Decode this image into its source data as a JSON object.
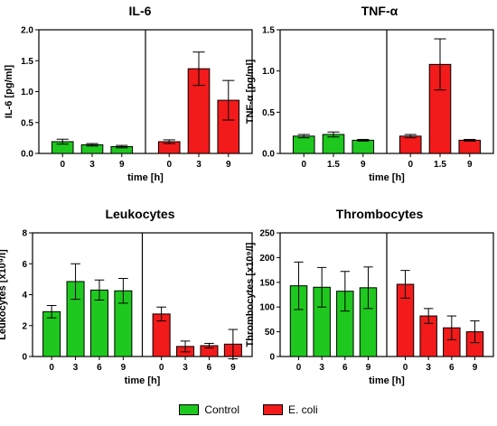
{
  "legend": [
    {
      "label": "Control",
      "color": "#1ec81e"
    },
    {
      "label": "E. coli",
      "color": "#f21a1a"
    }
  ],
  "chart_data": [
    {
      "type": "bar",
      "title": "IL-6",
      "xlabel": "time [h]",
      "ylabel": "IL-6 [pg/ml]",
      "ylim": [
        0,
        2.0
      ],
      "yticks": [
        "0.0",
        "0.5",
        "1.0",
        "1.5",
        "2.0"
      ],
      "series": [
        {
          "name": "Control",
          "categories": [
            "0",
            "3",
            "9"
          ],
          "values": [
            0.19,
            0.14,
            0.11
          ],
          "errors": [
            0.04,
            0.02,
            0.02
          ]
        },
        {
          "name": "E. coli",
          "categories": [
            "0",
            "3",
            "9"
          ],
          "values": [
            0.19,
            1.37,
            0.86
          ],
          "errors": [
            0.03,
            0.27,
            0.32
          ]
        }
      ]
    },
    {
      "type": "bar",
      "title": "TNF-α",
      "xlabel": "time [h]",
      "ylabel": "TNF-α [pg/ml]",
      "ylim": [
        0,
        1.5
      ],
      "yticks": [
        "0.0",
        "0.5",
        "1.0",
        "1.5"
      ],
      "series": [
        {
          "name": "Control",
          "categories": [
            "0",
            "1.5",
            "9"
          ],
          "values": [
            0.21,
            0.23,
            0.16
          ],
          "errors": [
            0.02,
            0.03,
            0.01
          ]
        },
        {
          "name": "E. coli",
          "categories": [
            "0",
            "1.5",
            "9"
          ],
          "values": [
            0.21,
            1.08,
            0.16
          ],
          "errors": [
            0.02,
            0.31,
            0.01
          ]
        }
      ]
    },
    {
      "type": "bar",
      "title": "Leukocytes",
      "xlabel": "time [h]",
      "ylabel": "Leukocytes [x10⁹/l]",
      "ylim": [
        0,
        8
      ],
      "yticks": [
        "0",
        "2",
        "4",
        "6",
        "8"
      ],
      "series": [
        {
          "name": "Control",
          "categories": [
            "0",
            "3",
            "6",
            "9"
          ],
          "values": [
            2.9,
            4.85,
            4.3,
            4.25
          ],
          "errors": [
            0.4,
            1.15,
            0.65,
            0.8
          ]
        },
        {
          "name": "E. coli",
          "categories": [
            "0",
            "3",
            "6",
            "9"
          ],
          "values": [
            2.75,
            0.65,
            0.7,
            0.8
          ],
          "errors": [
            0.45,
            0.35,
            0.15,
            0.95
          ]
        }
      ]
    },
    {
      "type": "bar",
      "title": "Thrombocytes",
      "xlabel": "time [h]",
      "ylabel": "Thrombocytes [x10⁹/l]",
      "ylim": [
        0,
        250
      ],
      "yticks": [
        "0",
        "50",
        "100",
        "150",
        "200",
        "250"
      ],
      "series": [
        {
          "name": "Control",
          "categories": [
            "0",
            "3",
            "6",
            "9"
          ],
          "values": [
            143,
            140,
            132,
            139
          ],
          "errors": [
            48,
            40,
            40,
            42
          ]
        },
        {
          "name": "E. coli",
          "categories": [
            "0",
            "3",
            "6",
            "9"
          ],
          "values": [
            146,
            82,
            58,
            50
          ],
          "errors": [
            28,
            15,
            24,
            22
          ]
        }
      ]
    }
  ]
}
